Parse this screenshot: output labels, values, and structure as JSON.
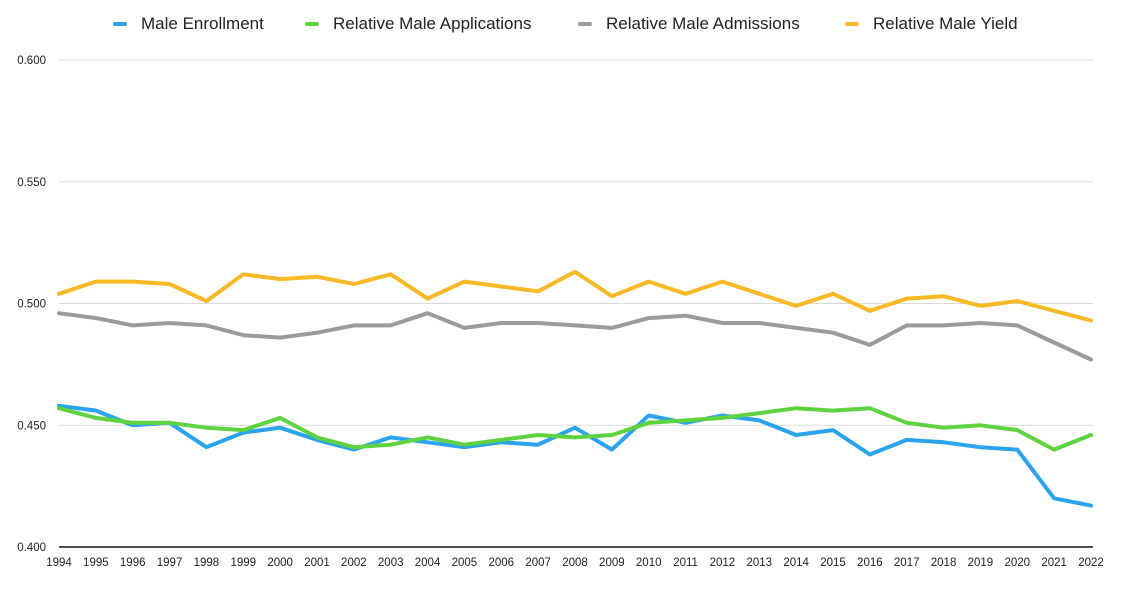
{
  "chart_data": {
    "type": "line",
    "title": "",
    "xlabel": "",
    "ylabel": "",
    "x": [
      "1994",
      "1995",
      "1996",
      "1997",
      "1998",
      "1999",
      "2000",
      "2001",
      "2002",
      "2003",
      "2004",
      "2005",
      "2006",
      "2007",
      "2008",
      "2009",
      "2010",
      "2011",
      "2012",
      "2013",
      "2014",
      "2015",
      "2016",
      "2017",
      "2018",
      "2019",
      "2020",
      "2021",
      "2022"
    ],
    "ylim": [
      0.4,
      0.6
    ],
    "yticks": [
      "0.400",
      "0.450",
      "0.500",
      "0.550",
      "0.600"
    ],
    "grid": true,
    "legend_position": "top",
    "series": [
      {
        "name": "Male Enrollment",
        "color": "#2aa4ee",
        "values": [
          0.458,
          0.456,
          0.45,
          0.451,
          0.441,
          0.447,
          0.449,
          0.444,
          0.44,
          0.445,
          0.443,
          0.441,
          0.443,
          0.442,
          0.449,
          0.44,
          0.454,
          0.451,
          0.454,
          0.452,
          0.446,
          0.448,
          0.438,
          0.444,
          0.443,
          0.441,
          0.44,
          0.42,
          0.417
        ]
      },
      {
        "name": "Relative Male Applications",
        "color": "#5fd33f",
        "values": [
          0.457,
          0.453,
          0.451,
          0.451,
          0.449,
          0.448,
          0.453,
          0.445,
          0.441,
          0.442,
          0.445,
          0.442,
          0.444,
          0.446,
          0.445,
          0.446,
          0.451,
          0.452,
          0.453,
          0.455,
          0.457,
          0.456,
          0.457,
          0.451,
          0.449,
          0.45,
          0.448,
          0.44,
          0.446
        ]
      },
      {
        "name": "Relative Male Admissions",
        "color": "#9b9b9b",
        "values": [
          0.496,
          0.494,
          0.491,
          0.492,
          0.491,
          0.487,
          0.486,
          0.488,
          0.491,
          0.491,
          0.496,
          0.49,
          0.492,
          0.492,
          0.491,
          0.49,
          0.494,
          0.495,
          0.492,
          0.492,
          0.49,
          0.488,
          0.483,
          0.491,
          0.491,
          0.492,
          0.491,
          0.484,
          0.477
        ]
      },
      {
        "name": "Relative Male Yield",
        "color": "#f7b925",
        "values": [
          0.504,
          0.509,
          0.509,
          0.508,
          0.501,
          0.512,
          0.51,
          0.511,
          0.508,
          0.512,
          0.502,
          0.509,
          0.507,
          0.505,
          0.513,
          0.503,
          0.509,
          0.504,
          0.509,
          0.504,
          0.499,
          0.504,
          0.497,
          0.502,
          0.503,
          0.499,
          0.501,
          0.497,
          0.493
        ]
      }
    ]
  }
}
